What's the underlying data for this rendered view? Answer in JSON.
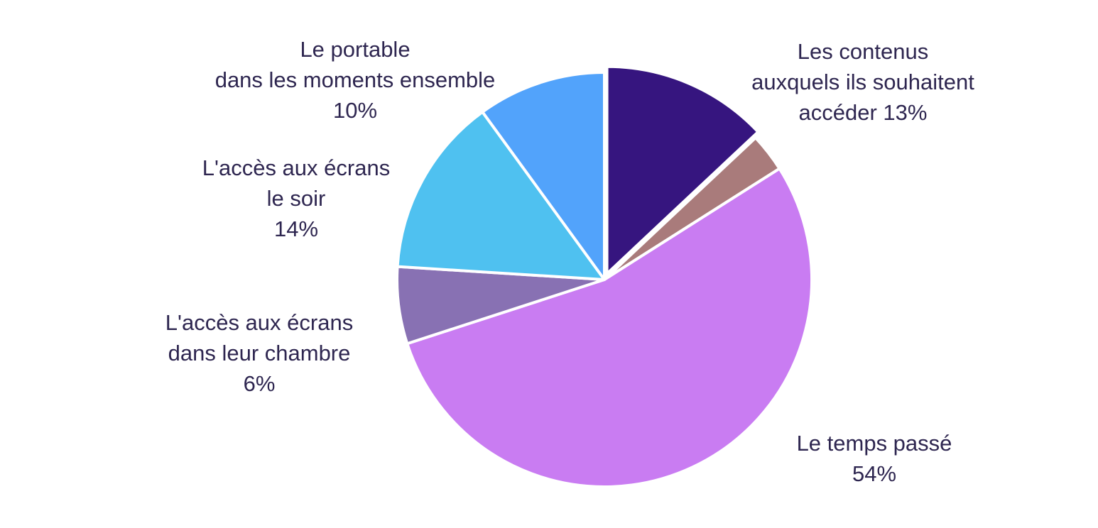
{
  "chart_data": {
    "type": "pie",
    "slices": [
      {
        "label_lines": [
          "Les contenus",
          "auxquels ils souhaitent",
          "accéder 13%"
        ],
        "value": 13,
        "color": "#36157f",
        "exploded": true
      },
      {
        "label_lines": [],
        "value": 3,
        "color": "#a97b7b",
        "exploded": false
      },
      {
        "label_lines": [
          "Le temps passé",
          "54%"
        ],
        "value": 54,
        "color": "#c97cf2",
        "exploded": false
      },
      {
        "label_lines": [
          "L'accès aux écrans",
          "dans leur chambre",
          "6%"
        ],
        "value": 6,
        "color": "#8871b3",
        "exploded": false
      },
      {
        "label_lines": [
          "L'accès aux écrans",
          "le soir",
          "14%"
        ],
        "value": 14,
        "color": "#4fc1f0",
        "exploded": false
      },
      {
        "label_lines": [
          "Le portable",
          "dans les moments ensemble",
          "10%"
        ],
        "value": 10,
        "color": "#52a3fb",
        "exploded": false
      }
    ],
    "start": "12 o'clock",
    "direction": "clockwise",
    "legend": "none",
    "label_color": "#2e2650"
  }
}
